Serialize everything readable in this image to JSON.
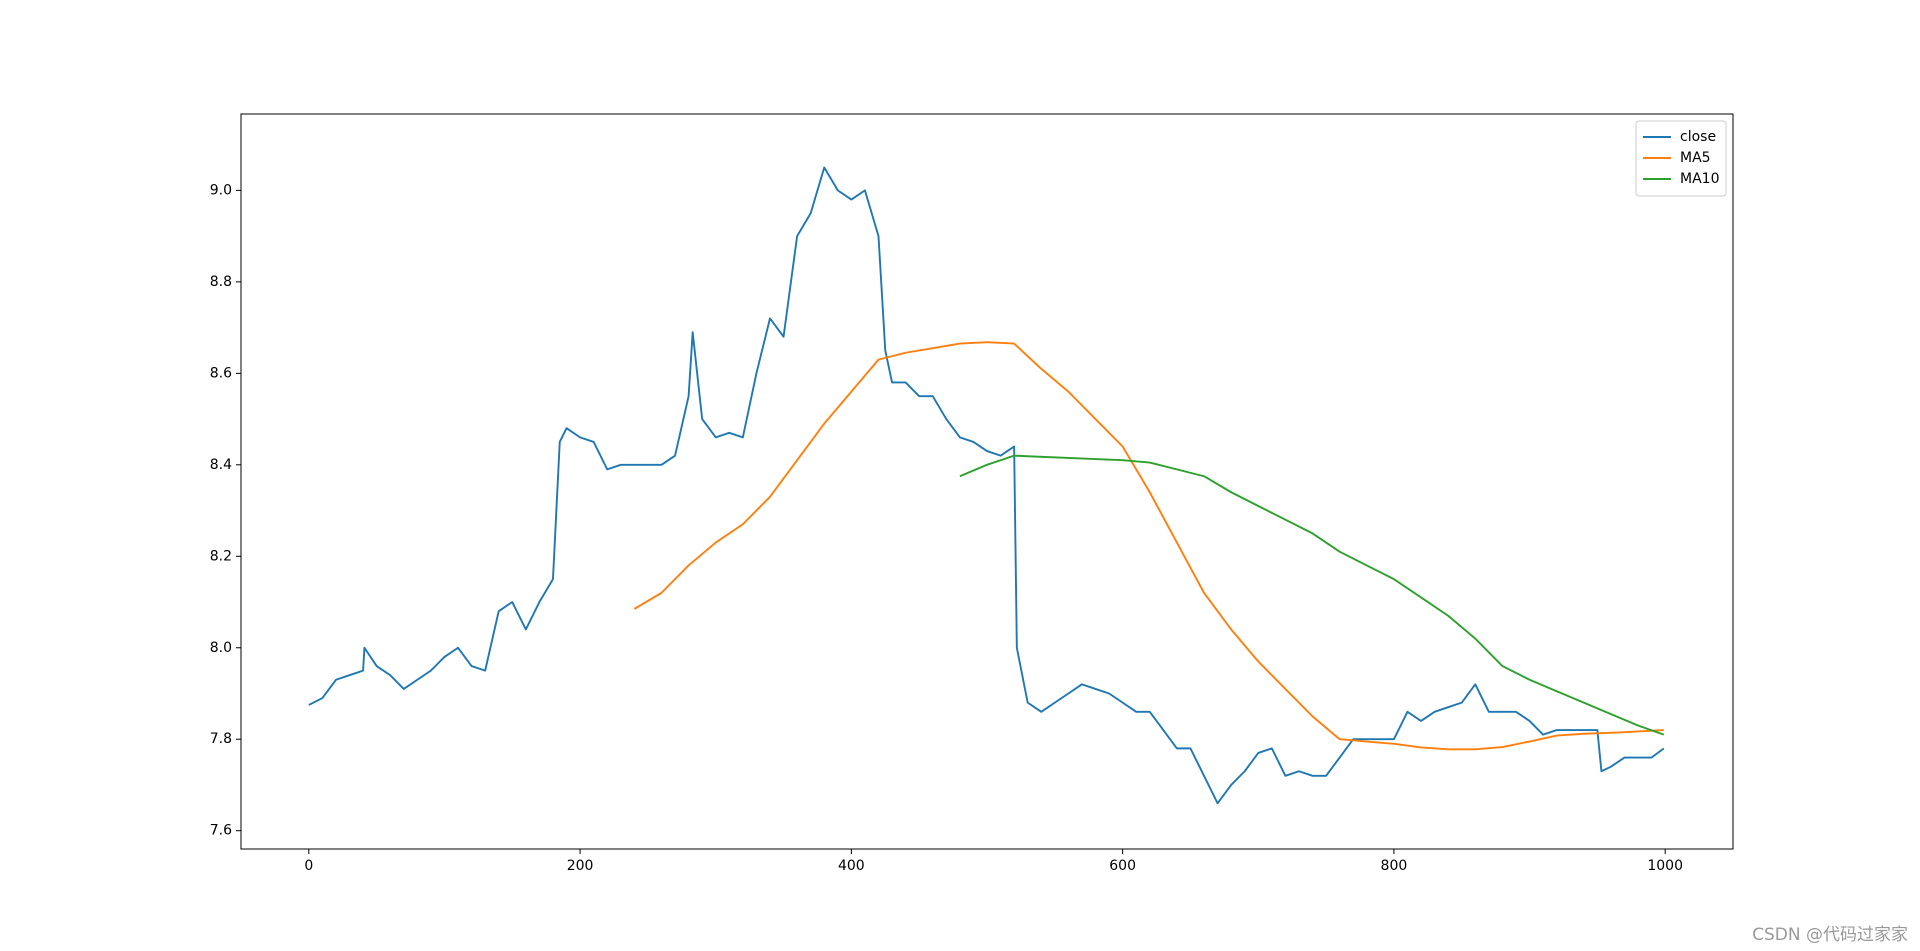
{
  "chart_data": {
    "type": "line",
    "xlim": [
      -50,
      1050
    ],
    "ylim": [
      7.56,
      9.167
    ],
    "xticks": [
      0,
      200,
      400,
      600,
      800,
      1000
    ],
    "yticks": [
      7.6,
      7.8,
      {
        "value": 8,
        "label": "8.0"
      },
      8.2,
      8.4,
      8.6,
      8.8,
      {
        "value": 9,
        "label": "9.0"
      }
    ],
    "legend": "upper right",
    "watermark": "CSDN @代码过家家",
    "series": [
      {
        "name": "close",
        "color": "#1f77b4",
        "x": [
          0,
          10,
          20,
          30,
          40,
          41,
          50,
          60,
          70,
          80,
          90,
          100,
          110,
          120,
          130,
          140,
          150,
          160,
          170,
          180,
          185,
          190,
          200,
          210,
          220,
          230,
          240,
          250,
          260,
          270,
          280,
          283,
          290,
          300,
          310,
          320,
          330,
          340,
          350,
          360,
          370,
          380,
          390,
          400,
          410,
          420,
          425,
          430,
          440,
          450,
          460,
          470,
          480,
          490,
          500,
          510,
          520,
          522,
          530,
          540,
          550,
          560,
          570,
          580,
          590,
          600,
          610,
          620,
          630,
          640,
          650,
          660,
          670,
          680,
          690,
          700,
          710,
          720,
          730,
          740,
          750,
          760,
          770,
          780,
          790,
          800,
          810,
          820,
          830,
          840,
          850,
          860,
          870,
          880,
          890,
          900,
          910,
          920,
          930,
          940,
          950,
          953,
          960,
          970,
          980,
          990,
          999
        ],
        "values": [
          7.875,
          7.89,
          7.93,
          7.94,
          7.95,
          8.0,
          7.96,
          7.94,
          7.91,
          7.93,
          7.95,
          7.98,
          8.0,
          7.96,
          7.95,
          8.08,
          8.1,
          8.04,
          8.1,
          8.15,
          8.45,
          8.48,
          8.46,
          8.45,
          8.39,
          8.4,
          8.4,
          8.4,
          8.4,
          8.42,
          8.55,
          8.69,
          8.5,
          8.46,
          8.47,
          8.46,
          8.6,
          8.72,
          8.68,
          8.9,
          8.95,
          9.05,
          9.0,
          8.98,
          9.0,
          8.9,
          8.65,
          8.58,
          8.58,
          8.55,
          8.55,
          8.5,
          8.46,
          8.45,
          8.43,
          8.42,
          8.44,
          8.0,
          7.88,
          7.86,
          7.88,
          7.9,
          7.92,
          7.91,
          7.9,
          7.88,
          7.86,
          7.86,
          7.82,
          7.78,
          7.78,
          7.72,
          7.66,
          7.7,
          7.73,
          7.77,
          7.78,
          7.72,
          7.73,
          7.72,
          7.72,
          7.76,
          7.8,
          7.8,
          7.8,
          7.8,
          7.86,
          7.84,
          7.86,
          7.87,
          7.88,
          7.92,
          7.86,
          7.86,
          7.86,
          7.84,
          7.81,
          7.82,
          7.82,
          7.82,
          7.82,
          7.73,
          7.74,
          7.76,
          7.76,
          7.76,
          7.78
        ]
      },
      {
        "name": "MA5",
        "color": "#ff7f0e",
        "x": [
          240,
          260,
          280,
          300,
          320,
          340,
          360,
          380,
          400,
          420,
          440,
          460,
          480,
          500,
          520,
          540,
          560,
          580,
          600,
          620,
          640,
          660,
          680,
          700,
          720,
          740,
          760,
          780,
          800,
          820,
          840,
          860,
          880,
          900,
          920,
          940,
          960,
          980,
          999
        ],
        "values": [
          8.085,
          8.12,
          8.18,
          8.23,
          8.27,
          8.33,
          8.41,
          8.49,
          8.56,
          8.63,
          8.645,
          8.655,
          8.665,
          8.668,
          8.665,
          8.61,
          8.56,
          8.5,
          8.44,
          8.34,
          8.23,
          8.12,
          8.04,
          7.97,
          7.91,
          7.85,
          7.8,
          7.795,
          7.79,
          7.782,
          7.778,
          7.778,
          7.783,
          7.795,
          7.808,
          7.812,
          7.814,
          7.817,
          7.82
        ]
      },
      {
        "name": "MA10",
        "color": "#2ca02c",
        "x": [
          480,
          500,
          520,
          560,
          600,
          620,
          640,
          660,
          680,
          700,
          720,
          740,
          760,
          780,
          800,
          820,
          840,
          860,
          880,
          900,
          920,
          940,
          960,
          980,
          999
        ],
        "values": [
          8.375,
          8.4,
          8.42,
          8.415,
          8.41,
          8.405,
          8.39,
          8.375,
          8.34,
          8.31,
          8.28,
          8.25,
          8.21,
          8.18,
          8.15,
          8.11,
          8.07,
          8.02,
          7.96,
          7.93,
          7.905,
          7.88,
          7.855,
          7.83,
          7.81
        ]
      }
    ]
  }
}
